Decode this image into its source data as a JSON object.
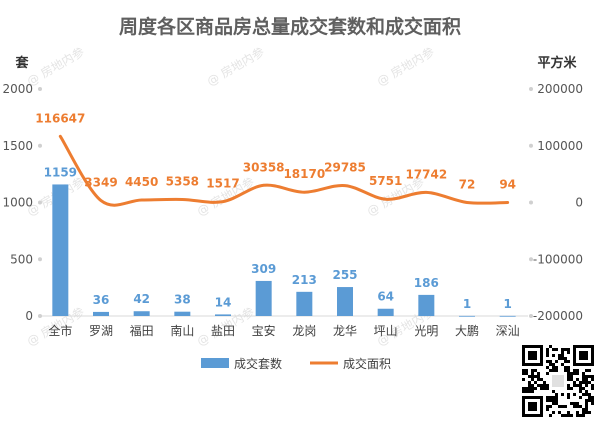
{
  "chart_data": {
    "type": "bar",
    "title": "周度各区商品房总量成交套数和成交面积",
    "left_unit": "套",
    "right_unit": "平方米",
    "categories": [
      "全市",
      "罗湖",
      "福田",
      "南山",
      "盐田",
      "宝安",
      "龙岗",
      "龙华",
      "坪山",
      "光明",
      "大鹏",
      "深汕"
    ],
    "y_left": {
      "min": 0,
      "max": 2000,
      "ticks": [
        0,
        500,
        1000,
        1500,
        2000
      ]
    },
    "y_right": {
      "min": -200000,
      "max": 200000,
      "ticks": [
        -200000,
        -100000,
        0,
        100000,
        200000
      ]
    },
    "series": [
      {
        "name": "成交套数",
        "type": "bar",
        "axis": "left",
        "color": "#5b9bd5",
        "values": [
          1159,
          36,
          42,
          38,
          14,
          309,
          213,
          255,
          64,
          186,
          1,
          1
        ]
      },
      {
        "name": "成交面积",
        "type": "line",
        "axis": "right",
        "color": "#ed7d31",
        "values": [
          116647,
          3349,
          4450,
          5358,
          1517,
          30358,
          18170,
          29785,
          5751,
          17742,
          72,
          94
        ]
      }
    ],
    "legend_position": "bottom",
    "grid": false
  },
  "watermark": {
    "text": "房地内参"
  },
  "qr_icon": "qr-code-icon"
}
